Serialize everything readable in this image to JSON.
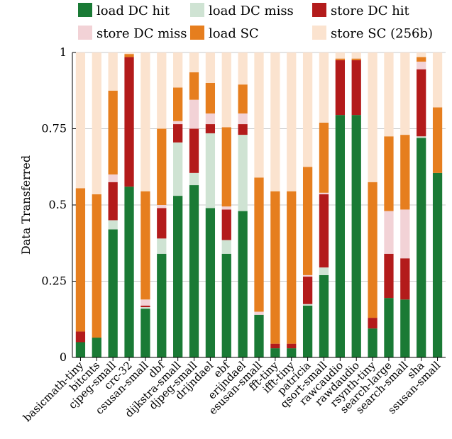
{
  "chart_data": {
    "type": "bar",
    "stacked": true,
    "ylabel": "Data Transferred",
    "ylim": [
      0,
      1
    ],
    "yticks": [
      0,
      0.25,
      0.5,
      0.75,
      1
    ],
    "ytick_labels": [
      "0",
      "0.25",
      "0.5",
      "0.75",
      "1"
    ],
    "grid": true,
    "legend_position": "top",
    "categories": [
      "basicmath-tiny",
      "bitcnts",
      "cjpeg-small",
      "crc-32",
      "csusan-small",
      "dbf",
      "dijkstra-small",
      "djpeg-small",
      "drijndael",
      "ebf",
      "erijndael",
      "esusan-small",
      "fft-tiny",
      "ifft-tiny",
      "patricia",
      "qsort-small",
      "rawcaudio",
      "rawdaudio",
      "rsynth-tiny",
      "search-large",
      "search-small",
      "sha",
      "ssusan-small"
    ],
    "series": [
      {
        "name": "load DC hit",
        "color": "#1a7a35",
        "values": [
          0.05,
          0.065,
          0.42,
          0.56,
          0.16,
          0.34,
          0.53,
          0.565,
          0.49,
          0.34,
          0.48,
          0.14,
          0.03,
          0.03,
          0.17,
          0.27,
          0.795,
          0.795,
          0.095,
          0.195,
          0.19,
          0.72,
          0.605
        ]
      },
      {
        "name": "load DC miss",
        "color": "#cfe3d3",
        "values": [
          0.0,
          0.0,
          0.03,
          0.0,
          0.005,
          0.05,
          0.175,
          0.04,
          0.245,
          0.045,
          0.25,
          0.0,
          0.0,
          0.0,
          0.005,
          0.025,
          0.0,
          0.0,
          0.0,
          0.0,
          0.0,
          0.005,
          0.0
        ]
      },
      {
        "name": "store DC hit",
        "color": "#b31b1b",
        "values": [
          0.035,
          0.0,
          0.125,
          0.425,
          0.005,
          0.1,
          0.06,
          0.145,
          0.03,
          0.1,
          0.035,
          0.0,
          0.015,
          0.015,
          0.09,
          0.24,
          0.18,
          0.18,
          0.035,
          0.145,
          0.135,
          0.22,
          0.0
        ]
      },
      {
        "name": "store DC miss",
        "color": "#f2d2d6",
        "values": [
          0.0,
          0.0,
          0.025,
          0.0,
          0.02,
          0.01,
          0.01,
          0.095,
          0.035,
          0.01,
          0.035,
          0.01,
          0.0,
          0.0,
          0.005,
          0.005,
          0.0,
          0.0,
          0.0,
          0.14,
          0.16,
          0.025,
          0.0
        ]
      },
      {
        "name": "load SC",
        "color": "#e67e1e",
        "values": [
          0.47,
          0.47,
          0.275,
          0.01,
          0.355,
          0.25,
          0.11,
          0.09,
          0.1,
          0.26,
          0.095,
          0.44,
          0.5,
          0.5,
          0.355,
          0.23,
          0.005,
          0.005,
          0.445,
          0.245,
          0.245,
          0.015,
          0.215
        ]
      },
      {
        "name": "store SC (256b)",
        "color": "#fbe3cf",
        "values": [
          0.445,
          0.465,
          0.125,
          0.005,
          0.455,
          0.25,
          0.115,
          0.065,
          0.1,
          0.245,
          0.105,
          0.41,
          0.455,
          0.455,
          0.375,
          0.23,
          0.02,
          0.02,
          0.425,
          0.275,
          0.27,
          0.015,
          0.18
        ]
      }
    ]
  }
}
